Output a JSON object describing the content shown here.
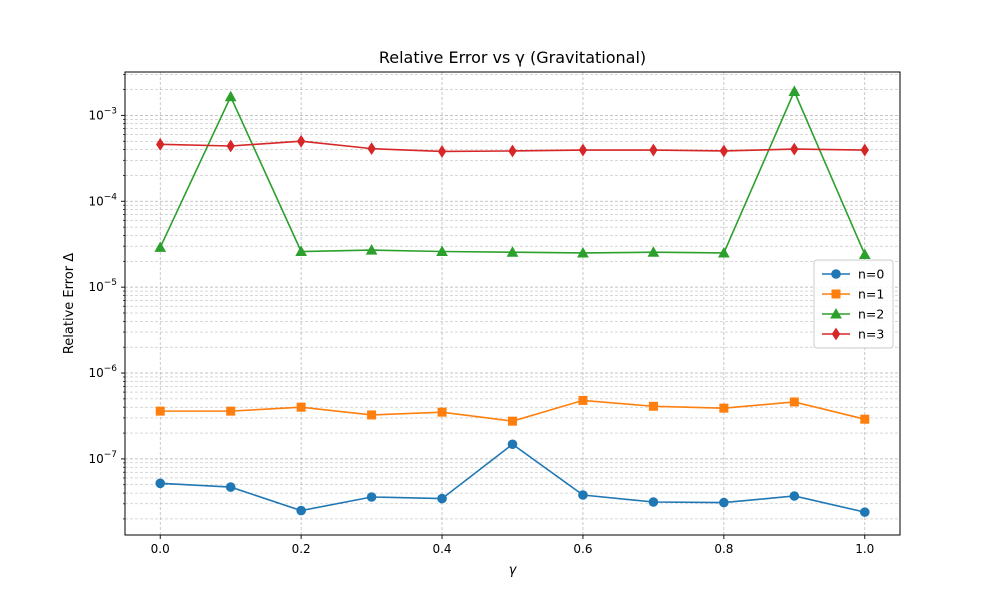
{
  "chart_data": {
    "type": "line",
    "title": "Relative Error vs γ (Gravitational)",
    "xlabel": "γ",
    "ylabel": "Relative Error Δ",
    "x": [
      0.0,
      0.1,
      0.2,
      0.3,
      0.4,
      0.5,
      0.6,
      0.7,
      0.8,
      0.9,
      1.0
    ],
    "xlim": [
      -0.05,
      1.05
    ],
    "ylim": [
      1.3e-08,
      0.0032
    ],
    "yscale": "log",
    "grid": true,
    "legend_position": "center-right",
    "xticks": [
      0.0,
      0.2,
      0.4,
      0.6,
      0.8,
      1.0
    ],
    "xtick_labels": [
      "0.0",
      "0.2",
      "0.4",
      "0.6",
      "0.8",
      "1.0"
    ],
    "yticks": [
      {
        "value": 1e-07,
        "base": "10",
        "exp": "−7"
      },
      {
        "value": 1e-06,
        "base": "10",
        "exp": "−6"
      },
      {
        "value": 1e-05,
        "base": "10",
        "exp": "−5"
      },
      {
        "value": 0.0001,
        "base": "10",
        "exp": "−4"
      },
      {
        "value": 0.001,
        "base": "10",
        "exp": "−3"
      }
    ],
    "series": [
      {
        "name": "n=0",
        "color": "#1f77b4",
        "marker": "circle",
        "values": [
          5.2e-08,
          4.7e-08,
          2.5e-08,
          3.6e-08,
          3.45e-08,
          1.48e-07,
          3.8e-08,
          3.15e-08,
          3.1e-08,
          3.7e-08,
          2.4e-08
        ]
      },
      {
        "name": "n=1",
        "color": "#ff7f0e",
        "marker": "square",
        "values": [
          3.6e-07,
          3.6e-07,
          4e-07,
          3.25e-07,
          3.5e-07,
          2.75e-07,
          4.8e-07,
          4.1e-07,
          3.9e-07,
          4.6e-07,
          2.9e-07
        ]
      },
      {
        "name": "n=2",
        "color": "#2ca02c",
        "marker": "triangle",
        "values": [
          2.9e-05,
          0.00165,
          2.6e-05,
          2.7e-05,
          2.6e-05,
          2.55e-05,
          2.5e-05,
          2.55e-05,
          2.5e-05,
          0.0019,
          2.4e-05
        ]
      },
      {
        "name": "n=3",
        "color": "#d62728",
        "marker": "diamond",
        "values": [
          0.00046,
          0.00044,
          0.0005,
          0.00041,
          0.00038,
          0.000385,
          0.000395,
          0.000395,
          0.000385,
          0.000405,
          0.000395
        ]
      }
    ]
  }
}
